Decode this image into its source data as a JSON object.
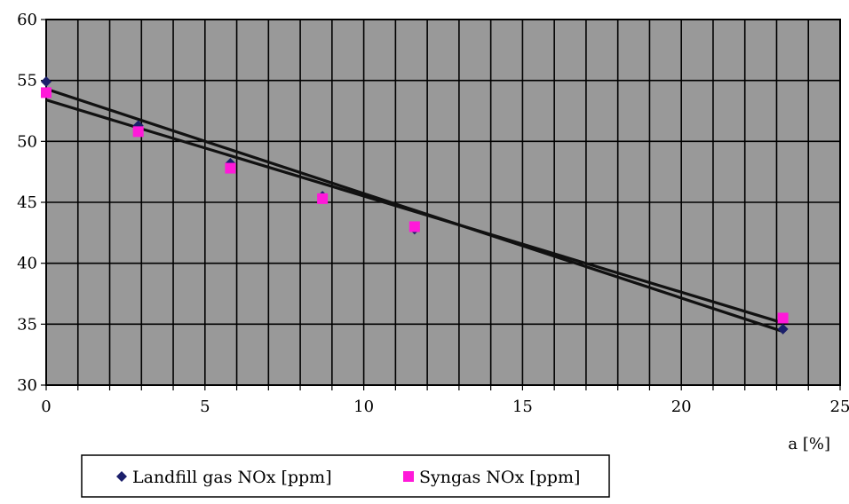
{
  "chart_data": {
    "type": "scatter",
    "title": "",
    "xlabel": "a [%]",
    "ylabel": "",
    "xlim": [
      0,
      25
    ],
    "ylim": [
      30,
      60
    ],
    "x_ticks": [
      0,
      5,
      10,
      15,
      20,
      25
    ],
    "y_ticks": [
      30,
      35,
      40,
      45,
      50,
      55,
      60
    ],
    "x_minor_step": 1,
    "grid": true,
    "legend_position": "bottom",
    "series": [
      {
        "name": "Landfill gas NOx [ppm]",
        "marker": "diamond",
        "color": "#1b1f6b",
        "x": [
          0,
          2.9,
          5.8,
          8.7,
          11.6,
          23.2
        ],
        "y": [
          54.9,
          51.3,
          48.2,
          45.5,
          42.8,
          34.6
        ],
        "trendline": {
          "x": [
            0,
            23.2
          ],
          "y": [
            54.3,
            34.4
          ]
        }
      },
      {
        "name": "Syngas NOx [ppm]",
        "marker": "square",
        "color": "#ff19d9",
        "x": [
          0,
          2.9,
          5.8,
          8.7,
          11.6,
          23.2
        ],
        "y": [
          54.0,
          50.8,
          47.8,
          45.3,
          43.0,
          35.5
        ],
        "trendline": {
          "x": [
            0,
            23.2
          ],
          "y": [
            53.4,
            35.1
          ]
        }
      }
    ],
    "colors": {
      "plot_background": "#999999",
      "grid": "#000000",
      "trendline": "#111111"
    }
  }
}
